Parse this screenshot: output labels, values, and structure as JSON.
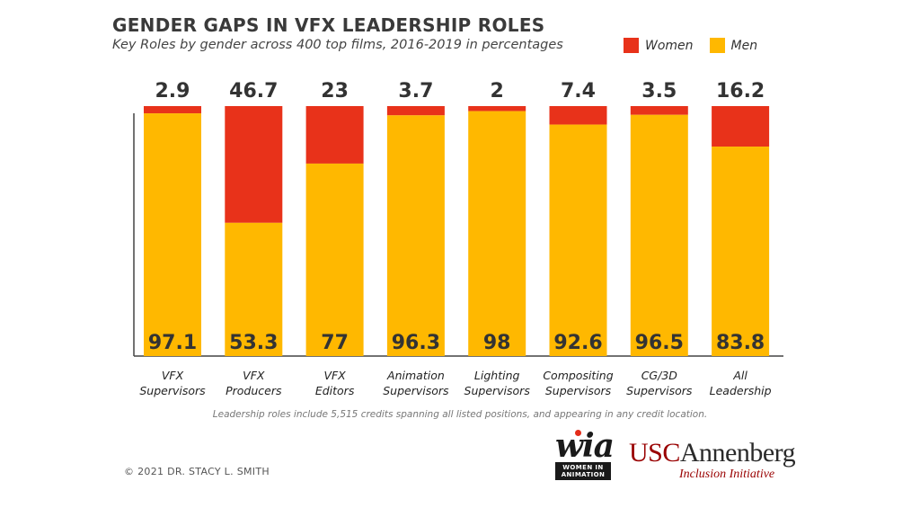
{
  "chart_data": {
    "type": "bar",
    "stacked": true,
    "title": "GENDER GAPS IN VFX LEADERSHIP ROLES",
    "subtitle": "Key Roles by gender across 400 top films, 2016-2019 in percentages",
    "categories": [
      [
        "VFX",
        "Supervisors"
      ],
      [
        "VFX",
        "Producers"
      ],
      [
        "VFX",
        "Editors"
      ],
      [
        "Animation",
        "Supervisors"
      ],
      [
        "Lighting",
        "Supervisors"
      ],
      [
        "Compositing",
        "Supervisors"
      ],
      [
        "CG/3D",
        "Supervisors"
      ],
      [
        "All",
        "Leadership"
      ]
    ],
    "series": [
      {
        "name": "Women",
        "color": "#e8321a",
        "values": [
          2.9,
          46.7,
          23,
          3.7,
          2,
          7.4,
          3.5,
          16.2
        ]
      },
      {
        "name": "Men",
        "color": "#ffb800",
        "values": [
          97.1,
          53.3,
          77,
          96.3,
          98,
          92.6,
          96.5,
          83.8
        ]
      }
    ],
    "ylim": [
      0,
      100
    ],
    "legend_position": "top-right",
    "grid": false
  },
  "note": "Leadership roles include 5,515 credits spanning all listed positions, and appearing in any credit location.",
  "copyright": "© 2021 DR. STACY L. SMITH",
  "logos": {
    "wia_mark": "wia",
    "wia_sub": "WOMEN IN ANIMATION",
    "usc_prefix": "USC",
    "usc_name": "Annenberg",
    "usc_sub": "Inclusion Initiative"
  }
}
